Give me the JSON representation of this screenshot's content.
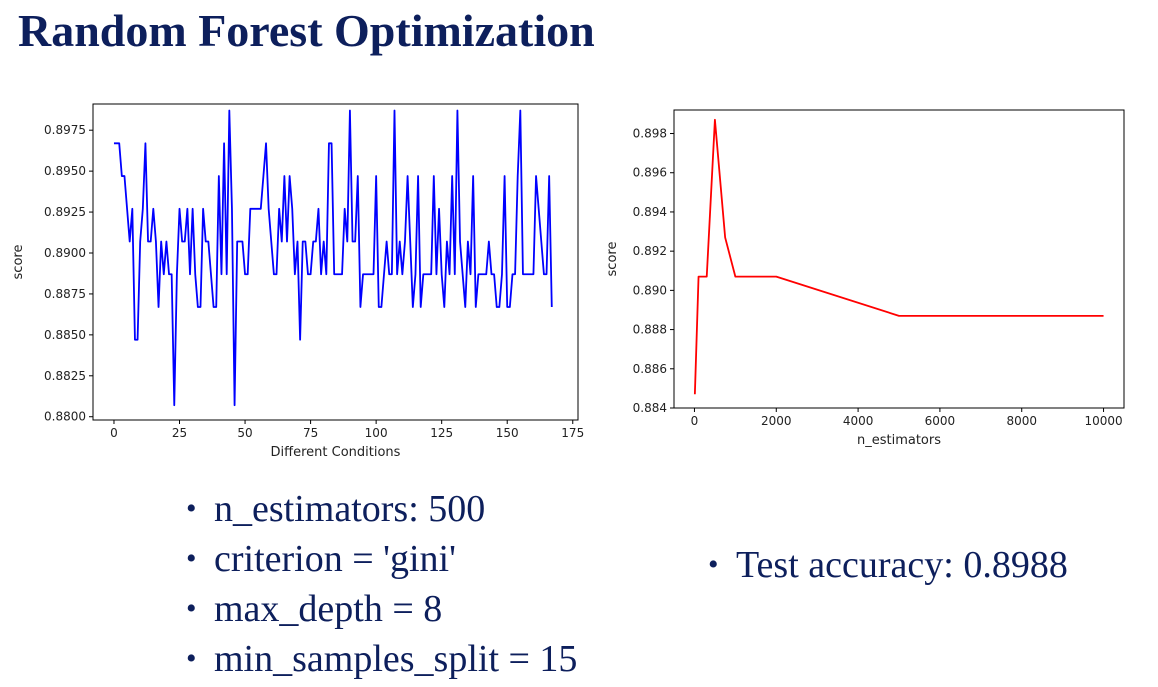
{
  "title": "Random Forest Optimization",
  "chart_data": [
    {
      "type": "line",
      "xlabel": "Different Conditions",
      "ylabel": "score",
      "color": "#0000ff",
      "xlim": [
        -8,
        177
      ],
      "ylim": [
        0.8798,
        0.8991
      ],
      "xticks": [
        0,
        25,
        50,
        75,
        100,
        125,
        150,
        175
      ],
      "yticks": [
        0.88,
        0.8825,
        0.885,
        0.8875,
        0.89,
        0.8925,
        0.895,
        0.8975
      ],
      "yticklabels": [
        "0.8800",
        "0.8825",
        "0.8850",
        "0.8875",
        "0.8900",
        "0.8925",
        "0.8950",
        "0.8975"
      ],
      "grid": false,
      "x": [
        0,
        1,
        2,
        3,
        4,
        5,
        6,
        7,
        8,
        9,
        10,
        11,
        12,
        13,
        14,
        15,
        16,
        17,
        18,
        19,
        20,
        21,
        22,
        23,
        24,
        25,
        26,
        27,
        28,
        29,
        30,
        31,
        32,
        33,
        34,
        35,
        36,
        37,
        38,
        39,
        40,
        41,
        42,
        43,
        44,
        45,
        46,
        47,
        48,
        49,
        50,
        51,
        52,
        53,
        54,
        55,
        56,
        57,
        58,
        59,
        60,
        61,
        62,
        63,
        64,
        65,
        66,
        67,
        68,
        69,
        70,
        71,
        72,
        73,
        74,
        75,
        76,
        77,
        78,
        79,
        80,
        81,
        82,
        83,
        84,
        85,
        86,
        87,
        88,
        89,
        90,
        91,
        92,
        93,
        94,
        95,
        96,
        97,
        98,
        99,
        100,
        101,
        102,
        103,
        104,
        105,
        106,
        107,
        108,
        109,
        110,
        111,
        112,
        113,
        114,
        115,
        116,
        117,
        118,
        119,
        120,
        121,
        122,
        123,
        124,
        125,
        126,
        127,
        128,
        129,
        130,
        131,
        132,
        133,
        134,
        135,
        136,
        137,
        138,
        139,
        140,
        141,
        142,
        143,
        144,
        145,
        146,
        147,
        148,
        149,
        150,
        151,
        152,
        153,
        154,
        155,
        156,
        157,
        158,
        159,
        160,
        161,
        162,
        163,
        164,
        165,
        166,
        167
      ],
      "y": [
        0.8967,
        0.8967,
        0.8967,
        0.8947,
        0.8947,
        0.8927,
        0.8907,
        0.8927,
        0.8847,
        0.8847,
        0.8907,
        0.8927,
        0.8967,
        0.8907,
        0.8907,
        0.8927,
        0.8907,
        0.8867,
        0.8907,
        0.8887,
        0.8907,
        0.8887,
        0.8887,
        0.8807,
        0.8887,
        0.8927,
        0.8907,
        0.8907,
        0.8927,
        0.8887,
        0.8927,
        0.8887,
        0.8867,
        0.8867,
        0.8927,
        0.8907,
        0.8907,
        0.8887,
        0.8867,
        0.8867,
        0.8947,
        0.8887,
        0.8967,
        0.8887,
        0.8987,
        0.8927,
        0.8807,
        0.8907,
        0.8907,
        0.8907,
        0.8887,
        0.8887,
        0.8927,
        0.8927,
        0.8927,
        0.8927,
        0.8927,
        0.8947,
        0.8967,
        0.8927,
        0.8907,
        0.8887,
        0.8887,
        0.8927,
        0.8907,
        0.8947,
        0.8907,
        0.8947,
        0.8927,
        0.8887,
        0.8907,
        0.8847,
        0.8907,
        0.8907,
        0.8887,
        0.8887,
        0.8907,
        0.8907,
        0.8927,
        0.8887,
        0.8907,
        0.8887,
        0.8967,
        0.8967,
        0.8887,
        0.8887,
        0.8887,
        0.8887,
        0.8927,
        0.8907,
        0.8987,
        0.8907,
        0.8907,
        0.8947,
        0.8867,
        0.8887,
        0.8887,
        0.8887,
        0.8887,
        0.8887,
        0.8947,
        0.8867,
        0.8867,
        0.8887,
        0.8907,
        0.8887,
        0.8887,
        0.8987,
        0.8887,
        0.8907,
        0.8887,
        0.8907,
        0.8947,
        0.8907,
        0.8867,
        0.8887,
        0.8947,
        0.8867,
        0.8887,
        0.8887,
        0.8887,
        0.8887,
        0.8947,
        0.8887,
        0.8927,
        0.8887,
        0.8867,
        0.8907,
        0.8887,
        0.8947,
        0.8887,
        0.8987,
        0.8907,
        0.8887,
        0.8867,
        0.8907,
        0.8887,
        0.8947,
        0.8867,
        0.8887,
        0.8887,
        0.8887,
        0.8887,
        0.8907,
        0.8887,
        0.8887,
        0.8867,
        0.8867,
        0.8887,
        0.8947,
        0.8867,
        0.8867,
        0.8887,
        0.8887,
        0.8947,
        0.8987,
        0.8887,
        0.8887,
        0.8887,
        0.8887,
        0.8887,
        0.8947,
        0.8927,
        0.8907,
        0.8887,
        0.8887,
        0.8947,
        0.8867
      ]
    },
    {
      "type": "line",
      "xlabel": "n_estimators",
      "ylabel": "score",
      "color": "#ff0000",
      "xlim": [
        -500,
        10500
      ],
      "ylim": [
        0.884,
        0.8992
      ],
      "xticks": [
        0,
        2000,
        4000,
        6000,
        8000,
        10000
      ],
      "yticks": [
        0.884,
        0.886,
        0.888,
        0.89,
        0.892,
        0.894,
        0.896,
        0.898
      ],
      "yticklabels": [
        "0.884",
        "0.886",
        "0.888",
        "0.890",
        "0.892",
        "0.894",
        "0.896",
        "0.898"
      ],
      "grid": false,
      "x": [
        10,
        100,
        200,
        300,
        500,
        750,
        1000,
        2000,
        5000,
        10000
      ],
      "y": [
        0.8847,
        0.8907,
        0.8907,
        0.8907,
        0.8987,
        0.8927,
        0.8907,
        0.8907,
        0.8887,
        0.8887
      ]
    }
  ],
  "params": [
    "n_estimators: 500",
    "criterion = 'gini'",
    "max_depth = 8",
    "min_samples_split = 15"
  ],
  "results": [
    "Test accuracy: 0.8988"
  ]
}
